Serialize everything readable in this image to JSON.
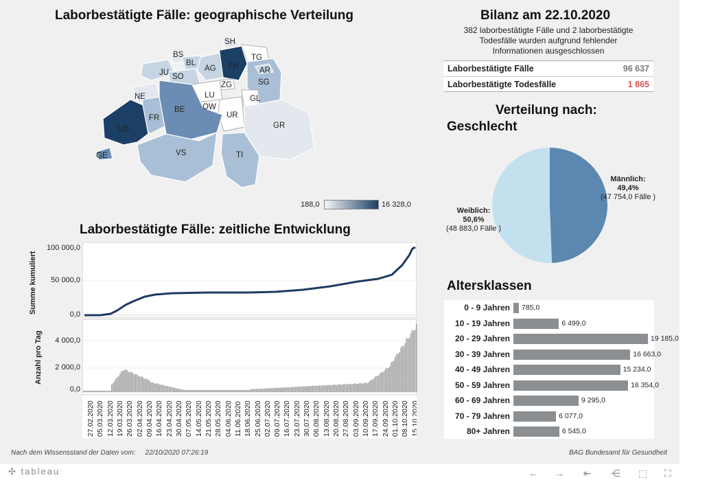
{
  "map": {
    "title": "Laborbestätigte Fälle: geographische Verteilung",
    "legend_min": "188,0",
    "legend_max": "16 328,0",
    "legend_color_low": "#f4f6f9",
    "legend_color_high": "#1c3f66",
    "cantons": [
      "SH",
      "BS",
      "BL",
      "TG",
      "JU",
      "ZH",
      "AG",
      "AR",
      "SO",
      "SG",
      "ZG",
      "LU",
      "NE",
      "GL",
      "OW",
      "FR",
      "BE",
      "UR",
      "VD",
      "GR",
      "GE",
      "VS",
      "TI"
    ]
  },
  "timeline": {
    "title": "Laborbestätigte Fälle: zeitliche Entwicklung",
    "cum_ylabel": "Summe kumuliert",
    "cum_ticks": [
      "100 000,0",
      "50 000,0",
      "0,0"
    ],
    "daily_ylabel": "Anzahl pro Tag",
    "daily_ticks": [
      "4 000,0",
      "2 000,0",
      "0,0"
    ],
    "dates": [
      "27.02.2020",
      "05.03.2020",
      "12.03.2020",
      "19.03.2020",
      "26.03.2020",
      "02.04.2020",
      "09.04.2020",
      "16.04.2020",
      "23.04.2020",
      "30.04.2020",
      "07.05.2020",
      "14.05.2020",
      "21.05.2020",
      "28.05.2020",
      "04.06.2020",
      "11.06.2020",
      "18.06.2020",
      "25.06.2020",
      "02.07.2020",
      "09.07.2020",
      "16.07.2020",
      "23.07.2020",
      "30.07.2020",
      "06.08.2020",
      "13.08.2020",
      "20.08.2020",
      "27.08.2020",
      "03.09.2020",
      "10.09.2020",
      "17.09.2020",
      "24.09.2020",
      "01.10.2020",
      "08.10.2020",
      "15.10.2020"
    ],
    "line_color": "#1f3a5f",
    "bar_color": "#9a9a9a"
  },
  "bilanz": {
    "title": "Bilanz am 22.10.2020",
    "note_line1": "382 laborbestätigte Fälle und 2 laborbestätigte",
    "note_line2": "Todesfälle wurden aufgrund fehlender",
    "note_line3": "Informationen ausgeschlossen",
    "cases_label": "Laborbestätigte Fälle",
    "cases_value": "96 637",
    "deaths_label": "Laborbestätigte Todesfälle",
    "deaths_value": "1 865",
    "deaths_color": "#d9534f"
  },
  "gender": {
    "title_line1": "Verteilung nach:",
    "title_line2": "Geschlecht",
    "male_label": "Männlich:",
    "male_pct": "49,4%",
    "male_count": "(47 754,0 Fälle )",
    "male_share": 0.494,
    "female_label": "Weiblich:",
    "female_pct": "50,6%",
    "female_count": "(48 883,0 Fälle )",
    "male_color": "#5b87b0",
    "female_color": "#c3e0ef"
  },
  "age": {
    "title": "Altersklassen",
    "max": 19185,
    "rows": [
      {
        "label": "0 - 9 Jahren",
        "value": 785,
        "text": "785,0"
      },
      {
        "label": "10 - 19 Jahren",
        "value": 6499,
        "text": "6 499,0"
      },
      {
        "label": "20 - 29 Jahren",
        "value": 19185,
        "text": "19 185,0"
      },
      {
        "label": "30 - 39 Jahren",
        "value": 16663,
        "text": "16 663,0"
      },
      {
        "label": "40 - 49 Jahren",
        "value": 15234,
        "text": "15 234,0"
      },
      {
        "label": "50 - 59 Jahren",
        "value": 16354,
        "text": "16 354,0"
      },
      {
        "label": "60 - 69 Jahren",
        "value": 9295,
        "text": "9 295,0"
      },
      {
        "label": "70 - 79 Jahren",
        "value": 6077,
        "text": "6 077,0"
      },
      {
        "label": "80+ Jahren",
        "value": 6545,
        "text": "6 545,0"
      }
    ]
  },
  "footer": {
    "left_label": "Nach dem Wissensstand der Daten vom:",
    "left_date": "22/10/2020 07:26:19",
    "right": "BAG Bundesamt für Gesundheit"
  },
  "toolbar": {
    "brand": "tableau",
    "icons": [
      "undo-icon",
      "redo-icon",
      "revert-icon",
      "share-icon",
      "download-icon",
      "fullscreen-icon"
    ]
  }
}
